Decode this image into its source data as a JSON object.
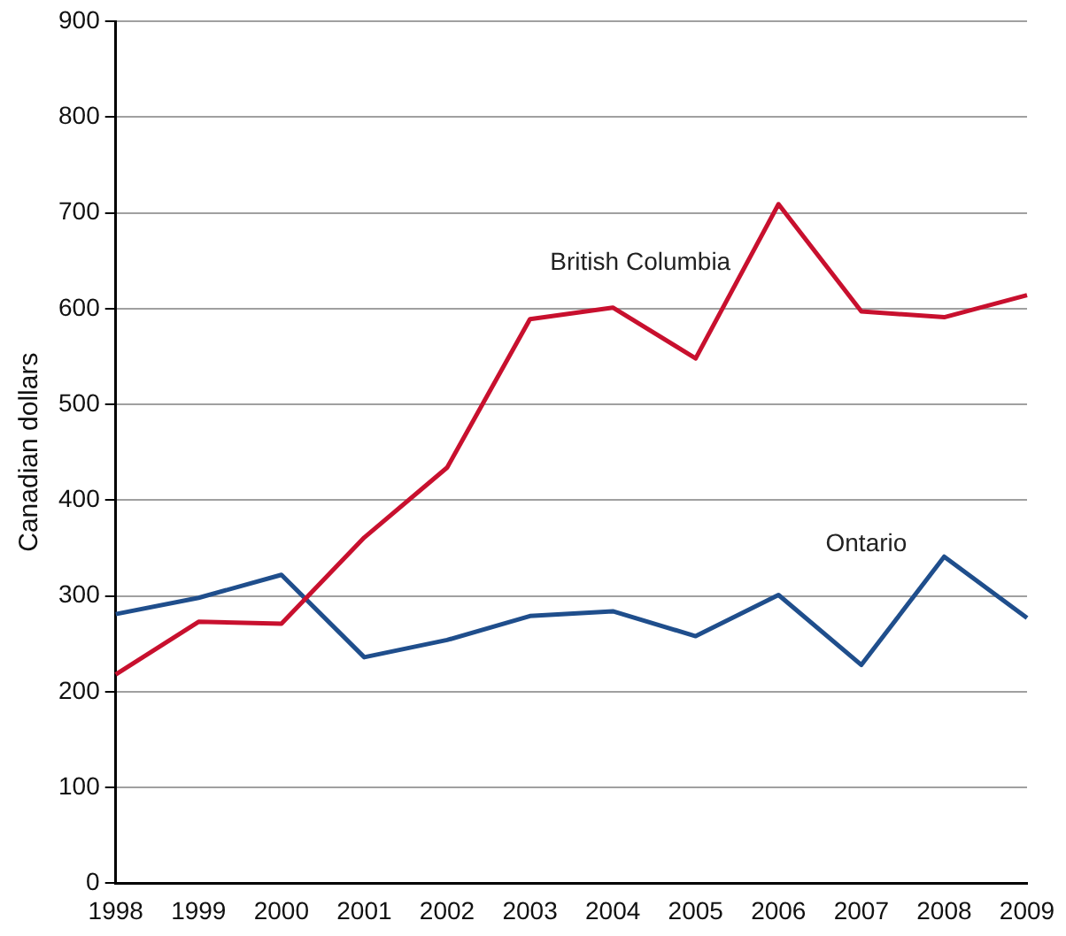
{
  "chart_data": {
    "type": "line",
    "ylabel": "Canadian dollars",
    "categories": [
      "1998",
      "1999",
      "2000",
      "2001",
      "2002",
      "2003",
      "2004",
      "2005",
      "2006",
      "2007",
      "2008",
      "2009"
    ],
    "series": [
      {
        "name": "British Columbia",
        "color": "#c8102e",
        "values": [
          218,
          273,
          271,
          361,
          434,
          589,
          601,
          548,
          709,
          597,
          591,
          614
        ]
      },
      {
        "name": "Ontario",
        "color": "#1f4e8c",
        "values": [
          281,
          298,
          322,
          236,
          254,
          279,
          284,
          258,
          301,
          228,
          341,
          277
        ]
      }
    ],
    "ylim": [
      0,
      900
    ],
    "yticks": [
      0,
      100,
      200,
      300,
      400,
      500,
      600,
      700,
      800,
      900
    ],
    "grid": "y",
    "legend": false,
    "marker": "none",
    "line_style": "solid"
  }
}
